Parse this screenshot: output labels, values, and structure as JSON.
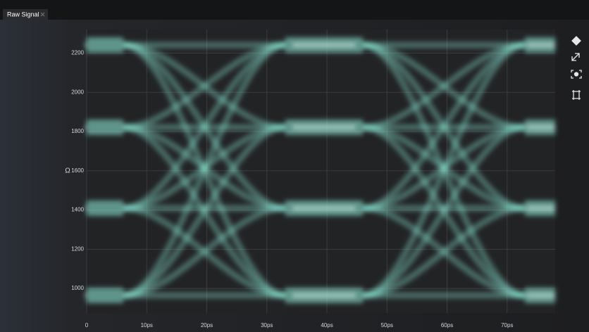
{
  "tab": {
    "title": "Raw Signal"
  },
  "chart_data": {
    "type": "eye",
    "y_label": "Ω",
    "ylim": [
      875,
      2320
    ],
    "yticks": [
      1000,
      1200,
      1400,
      1600,
      1800,
      2000,
      2200
    ],
    "xlim": [
      0,
      78
    ],
    "xticks": [
      0,
      {
        "value": 10,
        "label": "10ps"
      },
      {
        "value": 20,
        "label": "20ps"
      },
      {
        "value": 30,
        "label": "30ps"
      },
      {
        "value": 40,
        "label": "40ps"
      },
      {
        "value": 50,
        "label": "50ps"
      },
      {
        "value": 60,
        "label": "60ps"
      },
      {
        "value": 70,
        "label": "70ps"
      }
    ],
    "grid": true,
    "color": "#8ff0dc"
  }
}
